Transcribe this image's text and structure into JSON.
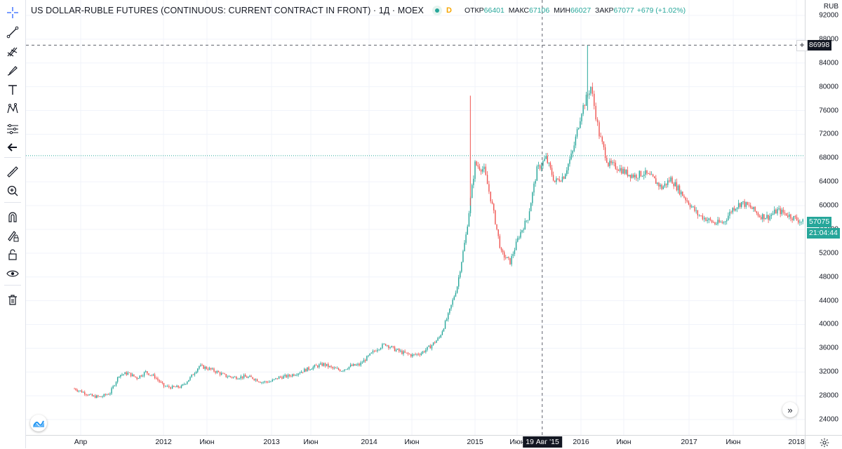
{
  "legend": {
    "title": "US DOLLAR-RUBLE FUTURES (CONTINUOUS: CURRENT CONTRACT IN FRONT) · 1Д · MOEX",
    "badge": "D",
    "open_label": "ОТКР",
    "open_value": "66401",
    "high_label": "МАКС",
    "high_value": "67106",
    "low_label": "МИН",
    "low_value": "66027",
    "close_label": "ЗАКР",
    "close_value": "67077",
    "change": "+679 (+1.02%)"
  },
  "price_axis": {
    "currency": "RUB",
    "ticks": [
      "92000",
      "88000",
      "84000",
      "80000",
      "76000",
      "72000",
      "68000",
      "64000",
      "60000",
      "56000",
      "52000",
      "48000",
      "44000",
      "40000",
      "36000",
      "32000",
      "28000",
      "24000"
    ],
    "crosshair_price": "86998",
    "last_price": "57075",
    "countdown": "21:04:44"
  },
  "time_axis": {
    "labels": [
      "Апр",
      "2012",
      "Июн",
      "2013",
      "Июн",
      "2014",
      "Июн",
      "2015",
      "Июн",
      "2016",
      "Июн",
      "2017",
      "Июн",
      "2018"
    ],
    "crosshair_date": "19 Авг '15"
  },
  "toolbar": {
    "icons": [
      "crosshair-icon",
      "trend-line-icon",
      "pitchfork-icon",
      "brush-icon",
      "text-icon",
      "pattern-icon",
      "forecast-icon",
      "back-arrow-icon",
      "ruler-icon",
      "zoom-in-icon",
      "magnet-icon",
      "lock-drawing-icon",
      "unlock-icon",
      "eye-icon",
      "trash-icon"
    ]
  },
  "colors": {
    "up": "#26a69a",
    "down": "#ef5350",
    "crosshair": "#5d606b",
    "text": "#131722"
  },
  "chart_data": {
    "type": "candlestick",
    "series": [
      {
        "name": "",
        "points": [
          [
            "2011-04-01",
            29200
          ],
          [
            "2011-05-01",
            28600
          ],
          [
            "2011-06-01",
            27900
          ],
          [
            "2011-07-01",
            27800
          ],
          [
            "2011-08-01",
            28500
          ],
          [
            "2011-09-01",
            31500
          ],
          [
            "2011-10-01",
            31800
          ],
          [
            "2011-11-01",
            31000
          ],
          [
            "2011-12-01",
            32000
          ],
          [
            "2012-01-01",
            31200
          ],
          [
            "2012-02-01",
            29600
          ],
          [
            "2012-03-01",
            29400
          ],
          [
            "2012-04-01",
            29500
          ],
          [
            "2012-05-01",
            31000
          ],
          [
            "2012-06-01",
            33000
          ],
          [
            "2012-07-01",
            32600
          ],
          [
            "2012-08-01",
            32000
          ],
          [
            "2012-09-01",
            31300
          ],
          [
            "2012-10-01",
            31100
          ],
          [
            "2012-11-01",
            31200
          ],
          [
            "2012-12-01",
            31000
          ],
          [
            "2013-01-01",
            30300
          ],
          [
            "2013-02-01",
            30400
          ],
          [
            "2013-03-01",
            31100
          ],
          [
            "2013-04-01",
            31300
          ],
          [
            "2013-05-01",
            31800
          ],
          [
            "2013-06-01",
            32400
          ],
          [
            "2013-07-01",
            32900
          ],
          [
            "2013-08-01",
            33300
          ],
          [
            "2013-09-01",
            32600
          ],
          [
            "2013-10-01",
            32300
          ],
          [
            "2013-11-01",
            33000
          ],
          [
            "2013-12-01",
            33200
          ],
          [
            "2014-01-01",
            34600
          ],
          [
            "2014-02-01",
            36000
          ],
          [
            "2014-03-01",
            36700
          ],
          [
            "2014-04-01",
            35800
          ],
          [
            "2014-05-01",
            35200
          ],
          [
            "2014-06-01",
            34800
          ],
          [
            "2014-07-01",
            35200
          ],
          [
            "2014-08-01",
            36300
          ],
          [
            "2014-09-01",
            37800
          ],
          [
            "2014-10-01",
            41500
          ],
          [
            "2014-11-01",
            46500
          ],
          [
            "2014-12-01",
            55000
          ],
          [
            "2015-01-01",
            67000
          ],
          [
            "2015-02-01",
            66000
          ],
          [
            "2015-03-01",
            60000
          ],
          [
            "2015-04-01",
            52000
          ],
          [
            "2015-05-01",
            50500
          ],
          [
            "2015-06-01",
            55000
          ],
          [
            "2015-07-01",
            58000
          ],
          [
            "2015-08-01",
            66000
          ],
          [
            "2015-09-01",
            68000
          ],
          [
            "2015-10-01",
            64000
          ],
          [
            "2015-11-01",
            65000
          ],
          [
            "2015-12-01",
            69000
          ],
          [
            "2016-01-01",
            76000
          ],
          [
            "2016-02-01",
            80000
          ],
          [
            "2016-03-01",
            72000
          ],
          [
            "2016-04-01",
            67000
          ],
          [
            "2016-05-01",
            66500
          ],
          [
            "2016-06-01",
            65500
          ],
          [
            "2016-07-01",
            65000
          ],
          [
            "2016-08-01",
            65500
          ],
          [
            "2016-09-01",
            64500
          ],
          [
            "2016-10-01",
            63000
          ],
          [
            "2016-11-01",
            64500
          ],
          [
            "2016-12-01",
            62500
          ],
          [
            "2017-01-01",
            60500
          ],
          [
            "2017-02-01",
            58500
          ],
          [
            "2017-03-01",
            57800
          ],
          [
            "2017-04-01",
            57000
          ],
          [
            "2017-05-01",
            57200
          ],
          [
            "2017-06-01",
            59500
          ],
          [
            "2017-07-01",
            60500
          ],
          [
            "2017-08-01",
            59700
          ],
          [
            "2017-09-01",
            58300
          ],
          [
            "2017-10-01",
            58100
          ],
          [
            "2017-11-01",
            59200
          ],
          [
            "2017-12-01",
            58600
          ],
          [
            "2018-01-01",
            57800
          ],
          [
            "2018-02-01",
            57075
          ]
        ]
      }
    ],
    "ylim": [
      22000,
      94000
    ],
    "grid": true,
    "crosshair": {
      "x": "2015-08-19",
      "y": 86998
    },
    "horizontal_line": 68400
  }
}
